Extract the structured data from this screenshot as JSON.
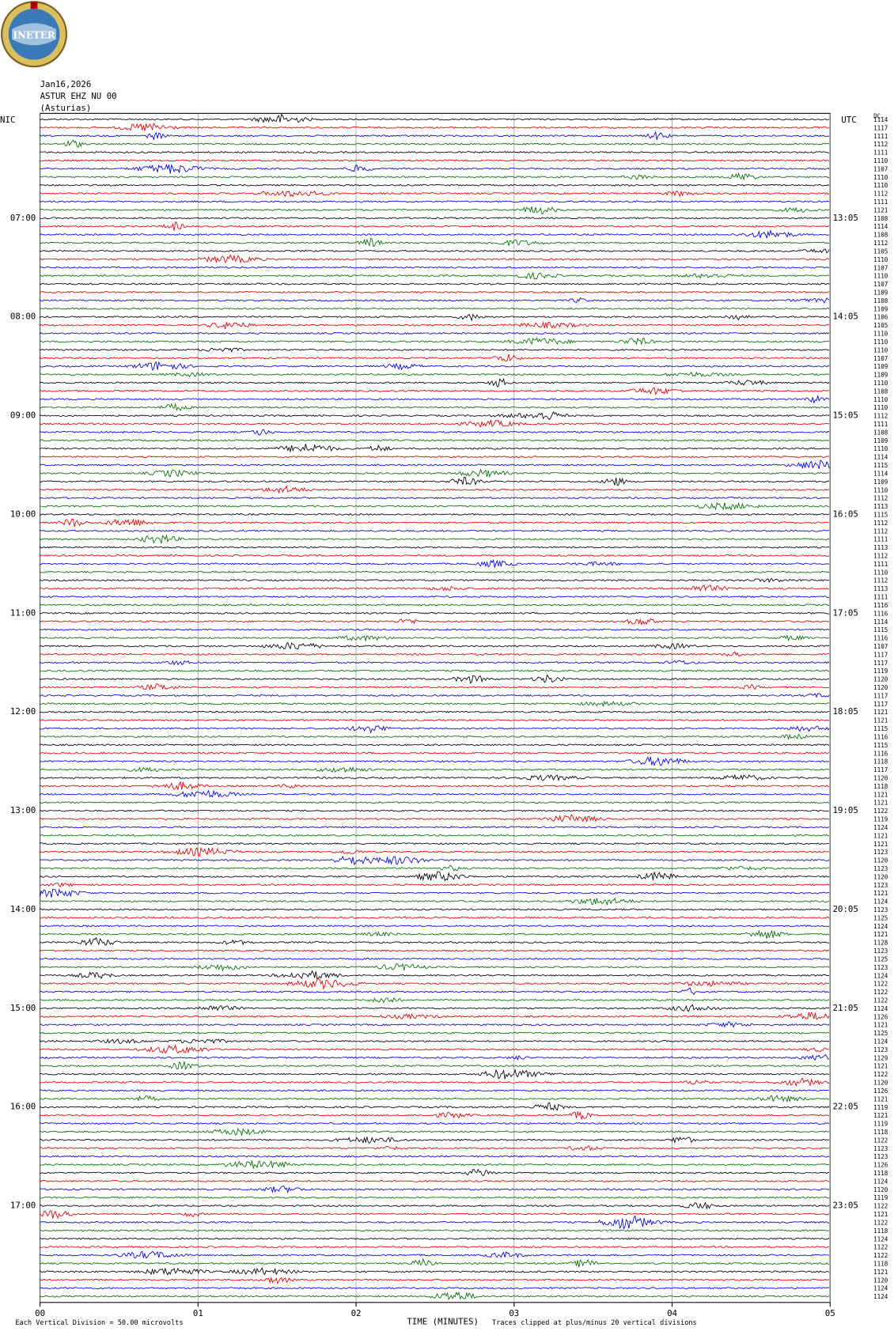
{
  "chart_data": {
    "type": "helicorder",
    "logo": "INETER",
    "date": "Jan16,2026",
    "station": "ASTUR EHZ NU 00",
    "location": "(Asturias)",
    "left_zone": "NIC",
    "right_zone": "UTC",
    "id_header": "DC",
    "xlabel": "TIME (MINUTES)",
    "scale_note": "Each Vertical Division =   50.00 microvolts",
    "clip_note": "Traces clipped at plus/minus 20 vertical divisions",
    "xlim": [
      0,
      5
    ],
    "xticks": [
      {
        "value": 0,
        "label": "00"
      },
      {
        "value": 1,
        "label": "01"
      },
      {
        "value": 2,
        "label": "02"
      },
      {
        "value": 3,
        "label": "03"
      },
      {
        "value": 4,
        "label": "04"
      },
      {
        "value": 5,
        "label": "05"
      }
    ],
    "trace_colors": [
      "#000000",
      "#e00000",
      "#0000e0",
      "#007000"
    ],
    "left_labels": [
      "07:00",
      "08:00",
      "09:00",
      "10:00",
      "11:00",
      "12:00",
      "13:00",
      "14:00",
      "15:00",
      "16:00",
      "17:00"
    ],
    "right_labels": [
      "13:05",
      "14:05",
      "15:05",
      "16:05",
      "17:05",
      "18:05",
      "19:05",
      "20:05",
      "21:05",
      "22:05",
      "23:05"
    ],
    "trace_ids": [
      "1114",
      "1117",
      "1111",
      "1112",
      "1111",
      "1110",
      "1107",
      "1110",
      "1110",
      "1112",
      "1111",
      "1121",
      "1108",
      "1114",
      "1108",
      "1112",
      "1105",
      "1110",
      "1107",
      "1110",
      "1107",
      "1109",
      "1108",
      "1109",
      "1106",
      "1105",
      "1110",
      "1110",
      "1110",
      "1107",
      "1109",
      "1109",
      "1110",
      "1108",
      "1110",
      "1110",
      "1112",
      "1111",
      "1108",
      "1109",
      "1110",
      "1114",
      "1115",
      "1114",
      "1109",
      "1110",
      "1112",
      "1113",
      "1115",
      "1112",
      "1112",
      "1111",
      "1113",
      "1112",
      "1111",
      "1110",
      "1112",
      "1113",
      "1111",
      "1116",
      "1116",
      "1114",
      "1115",
      "1116",
      "1107",
      "1117",
      "1117",
      "1119",
      "1120",
      "1120",
      "1117",
      "1117",
      "1121",
      "1121",
      "1115",
      "1116",
      "1115",
      "1116",
      "1118",
      "1117",
      "1120",
      "1118",
      "1121",
      "1121",
      "1122",
      "1119",
      "1124",
      "1121",
      "1121",
      "1123",
      "1120",
      "1123",
      "1120",
      "1123",
      "1121",
      "1124",
      "1123",
      "1125",
      "1124",
      "1121",
      "1128",
      "1123",
      "1125",
      "1123",
      "1124",
      "1122",
      "1122",
      "1122",
      "1124",
      "1126",
      "1121",
      "1125",
      "1124",
      "1123",
      "1129",
      "1121",
      "1122",
      "1120",
      "1126",
      "1121",
      "1119",
      "1121",
      "1119",
      "1118",
      "1122",
      "1123",
      "1123",
      "1126",
      "1118",
      "1124",
      "1120",
      "1119",
      "1122",
      "1121",
      "1122",
      "1118",
      "1124",
      "1122",
      "1122",
      "1118",
      "1121",
      "1120",
      "1124",
      "1124"
    ]
  }
}
